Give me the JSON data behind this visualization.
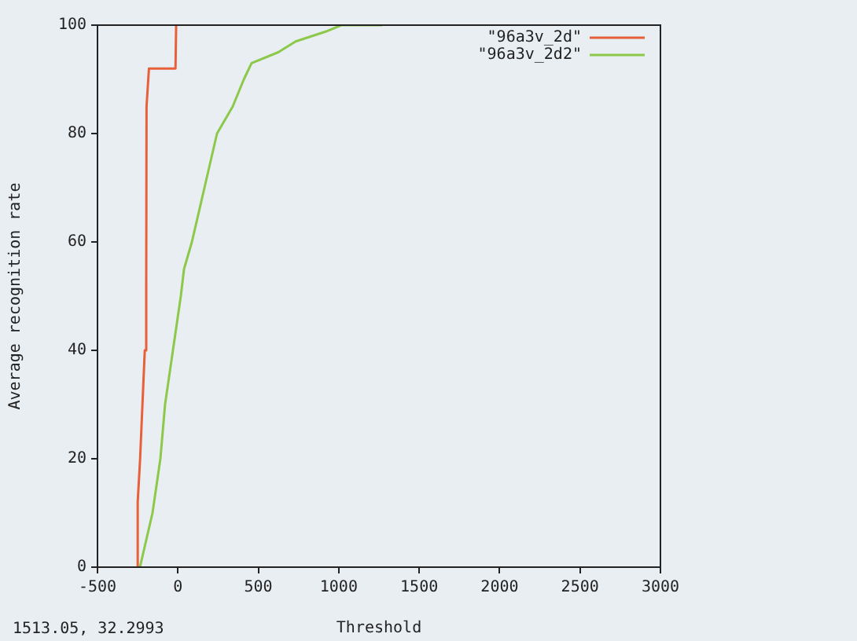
{
  "chart_data": {
    "type": "line",
    "xlabel": "Threshold",
    "ylabel": "Average recognition rate",
    "xlim": [
      -500,
      3000
    ],
    "xticks": [
      -500,
      0,
      500,
      1000,
      1500,
      2000,
      2500,
      3000
    ],
    "ylim": [
      0,
      100
    ],
    "yticks": [
      0,
      20,
      40,
      60,
      80,
      100
    ],
    "grid": false,
    "legend": "top right",
    "marker": "none",
    "line_style": "solid",
    "annotations": [
      "1513.05, 32.2993"
    ],
    "series": [
      {
        "name": "\"96a3v_2d\"",
        "color": "#e8603a",
        "x": [
          -255,
          -250,
          -235,
          -206,
          -197,
          -195,
          -180,
          -158,
          -30,
          -15,
          -11
        ],
        "values": [
          0,
          12,
          20,
          40,
          52,
          85,
          92,
          92,
          92,
          92,
          100
        ]
      },
      {
        "name": "\"96a3v_2d2\"",
        "color": "#8cc84a",
        "x": [
          -236,
          -158,
          -109,
          -80,
          -31,
          18,
          38,
          87,
          165,
          243,
          341,
          410,
          458,
          624,
          732,
          918,
          1016,
          1270
        ],
        "values": [
          0,
          10,
          20,
          30,
          40,
          50,
          55,
          60,
          70,
          80,
          85,
          90,
          93,
          95,
          97,
          98.8,
          100,
          100
        ]
      }
    ]
  }
}
